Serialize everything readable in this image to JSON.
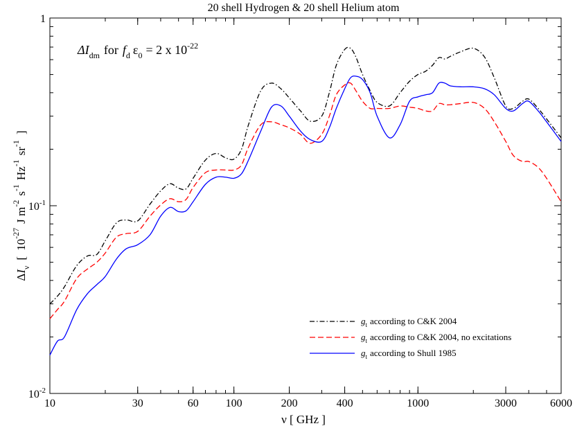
{
  "chart_data": {
    "type": "line",
    "title": "20 shell Hydrogen & 20 shell Helium atom",
    "annotation": {
      "main": "ΔI",
      "main_sub": "dm",
      "for_word": "for",
      "f": "f",
      "f_sub": "d",
      "eps": "ε",
      "eps_sub": "0",
      "rest": "= 2 x 10",
      "exp": "-22"
    },
    "xlabel": "ν [ GHz ]",
    "ylabel": {
      "delta": "Δ",
      "I": "I",
      "I_sub": "ν",
      "open": "[",
      "mant": "10",
      "exp1": "-27",
      "J": "J m",
      "exp2": "-2",
      "s": "s",
      "exp3": "-1",
      "Hz": "Hz",
      "exp4": "-1",
      "sr": "sr",
      "exp5": "-1",
      "close": "]"
    },
    "xscale": "log",
    "yscale": "log",
    "xlim": [
      10,
      6000
    ],
    "ylim": [
      0.01,
      1
    ],
    "xticks": [
      {
        "value": 10,
        "label": "10"
      },
      {
        "value": 30,
        "label": "30"
      },
      {
        "value": 60,
        "label": "60"
      },
      {
        "value": 100,
        "label": "100"
      },
      {
        "value": 200,
        "label": "200"
      },
      {
        "value": 400,
        "label": "400"
      },
      {
        "value": 1000,
        "label": "1000"
      },
      {
        "value": 3000,
        "label": "3000"
      },
      {
        "value": 6000,
        "label": "6000"
      }
    ],
    "yticks": [
      {
        "value": 0.01,
        "mant": "10",
        "exp": "-2"
      },
      {
        "value": 0.1,
        "mant": "10",
        "exp": "-1"
      },
      {
        "value": 1,
        "mant": "1",
        "exp": ""
      }
    ],
    "legend_position": "bottom-right",
    "series": [
      {
        "label_g": "g",
        "label_sub": "t",
        "name": "according to C&K 2004",
        "color": "#000000",
        "dash": "7,3,1.5,3",
        "x": [
          10,
          11,
          12,
          14,
          16,
          18,
          20,
          23,
          26,
          30,
          35,
          40,
          45,
          50,
          55,
          60,
          70,
          80,
          90,
          100,
          110,
          120,
          140,
          160,
          180,
          200,
          230,
          260,
          300,
          330,
          360,
          400,
          430,
          460,
          500,
          550,
          600,
          700,
          800,
          900,
          1000,
          1100,
          1200,
          1300,
          1400,
          1500,
          1700,
          2000,
          2300,
          2600,
          3000,
          3300,
          3700,
          4000,
          4500,
          5000,
          6000
        ],
        "y": [
          0.03,
          0.033,
          0.037,
          0.048,
          0.054,
          0.055,
          0.065,
          0.081,
          0.084,
          0.083,
          0.102,
          0.12,
          0.131,
          0.124,
          0.123,
          0.14,
          0.175,
          0.19,
          0.18,
          0.177,
          0.2,
          0.27,
          0.41,
          0.45,
          0.42,
          0.375,
          0.32,
          0.282,
          0.3,
          0.4,
          0.56,
          0.68,
          0.69,
          0.62,
          0.5,
          0.41,
          0.355,
          0.34,
          0.4,
          0.46,
          0.5,
          0.52,
          0.56,
          0.615,
          0.605,
          0.625,
          0.66,
          0.69,
          0.62,
          0.48,
          0.34,
          0.33,
          0.36,
          0.37,
          0.33,
          0.29,
          0.23
        ]
      },
      {
        "label_g": "g",
        "label_sub": "t",
        "name": "according to C&K 2004, no excitations",
        "color": "#ff0000",
        "dash": "8,4",
        "x": [
          10,
          11,
          12,
          14,
          16,
          18,
          20,
          23,
          26,
          30,
          35,
          40,
          45,
          50,
          55,
          60,
          70,
          80,
          90,
          100,
          110,
          120,
          140,
          160,
          180,
          200,
          230,
          260,
          300,
          330,
          360,
          400,
          430,
          460,
          500,
          550,
          600,
          700,
          800,
          900,
          1000,
          1100,
          1200,
          1300,
          1400,
          1500,
          1700,
          2000,
          2300,
          2600,
          3000,
          3300,
          3700,
          4000,
          4500,
          5000,
          6000
        ],
        "y": [
          0.025,
          0.028,
          0.031,
          0.041,
          0.046,
          0.05,
          0.056,
          0.068,
          0.071,
          0.073,
          0.088,
          0.101,
          0.109,
          0.105,
          0.108,
          0.125,
          0.15,
          0.155,
          0.155,
          0.155,
          0.165,
          0.205,
          0.27,
          0.28,
          0.27,
          0.26,
          0.24,
          0.215,
          0.24,
          0.3,
          0.39,
          0.44,
          0.45,
          0.41,
          0.36,
          0.33,
          0.33,
          0.33,
          0.34,
          0.335,
          0.33,
          0.32,
          0.32,
          0.35,
          0.345,
          0.345,
          0.35,
          0.355,
          0.33,
          0.28,
          0.22,
          0.185,
          0.172,
          0.172,
          0.16,
          0.14,
          0.105
        ]
      },
      {
        "label_g": "g",
        "label_sub": "t",
        "name": "according to Shull 1985",
        "color": "#0000ff",
        "dash": "",
        "x": [
          10,
          11,
          12,
          14,
          16,
          18,
          20,
          23,
          26,
          30,
          35,
          40,
          45,
          50,
          55,
          60,
          70,
          80,
          90,
          100,
          110,
          120,
          140,
          160,
          180,
          200,
          230,
          260,
          300,
          330,
          360,
          400,
          430,
          460,
          500,
          550,
          600,
          700,
          800,
          900,
          1000,
          1100,
          1200,
          1300,
          1400,
          1500,
          1700,
          2000,
          2300,
          2600,
          3000,
          3300,
          3700,
          4000,
          4500,
          5000,
          6000
        ],
        "y": [
          0.016,
          0.019,
          0.02,
          0.028,
          0.034,
          0.038,
          0.042,
          0.052,
          0.059,
          0.062,
          0.07,
          0.088,
          0.098,
          0.093,
          0.094,
          0.105,
          0.13,
          0.142,
          0.142,
          0.14,
          0.148,
          0.175,
          0.25,
          0.335,
          0.34,
          0.3,
          0.25,
          0.225,
          0.22,
          0.26,
          0.33,
          0.42,
          0.48,
          0.49,
          0.47,
          0.4,
          0.3,
          0.23,
          0.27,
          0.36,
          0.38,
          0.39,
          0.4,
          0.45,
          0.45,
          0.435,
          0.43,
          0.43,
          0.42,
          0.39,
          0.33,
          0.32,
          0.35,
          0.36,
          0.32,
          0.28,
          0.22
        ]
      }
    ]
  }
}
